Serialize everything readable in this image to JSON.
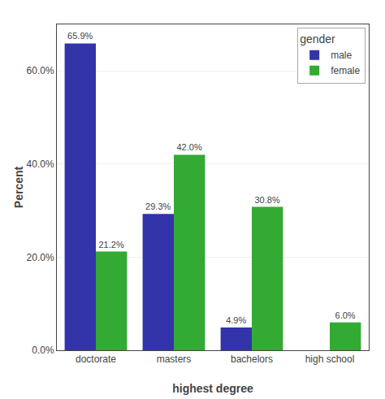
{
  "chart_data": {
    "type": "bar",
    "categories": [
      "doctorate",
      "masters",
      "bachelors",
      "high school"
    ],
    "series": [
      {
        "name": "male",
        "color": "#3333aa",
        "values": [
          65.9,
          29.3,
          4.9,
          0.0
        ],
        "value_labels": [
          "65.9%",
          "29.3%",
          "4.9%",
          null
        ]
      },
      {
        "name": "female",
        "color": "#33aa33",
        "values": [
          21.2,
          42.0,
          30.8,
          6.0
        ],
        "value_labels": [
          "21.2%",
          "42.0%",
          "30.8%",
          "6.0%"
        ]
      }
    ],
    "xlabel": "highest degree",
    "ylabel": "Percent",
    "legend_title": "gender",
    "ylim": [
      0,
      70
    ],
    "yticks": [
      {
        "value": 0,
        "label": "0.0%"
      },
      {
        "value": 20,
        "label": "20.0%"
      },
      {
        "value": 40,
        "label": "40.0%"
      },
      {
        "value": 60,
        "label": "60.0%"
      }
    ],
    "grid": true,
    "legend": "upper right",
    "data_labels": true
  }
}
